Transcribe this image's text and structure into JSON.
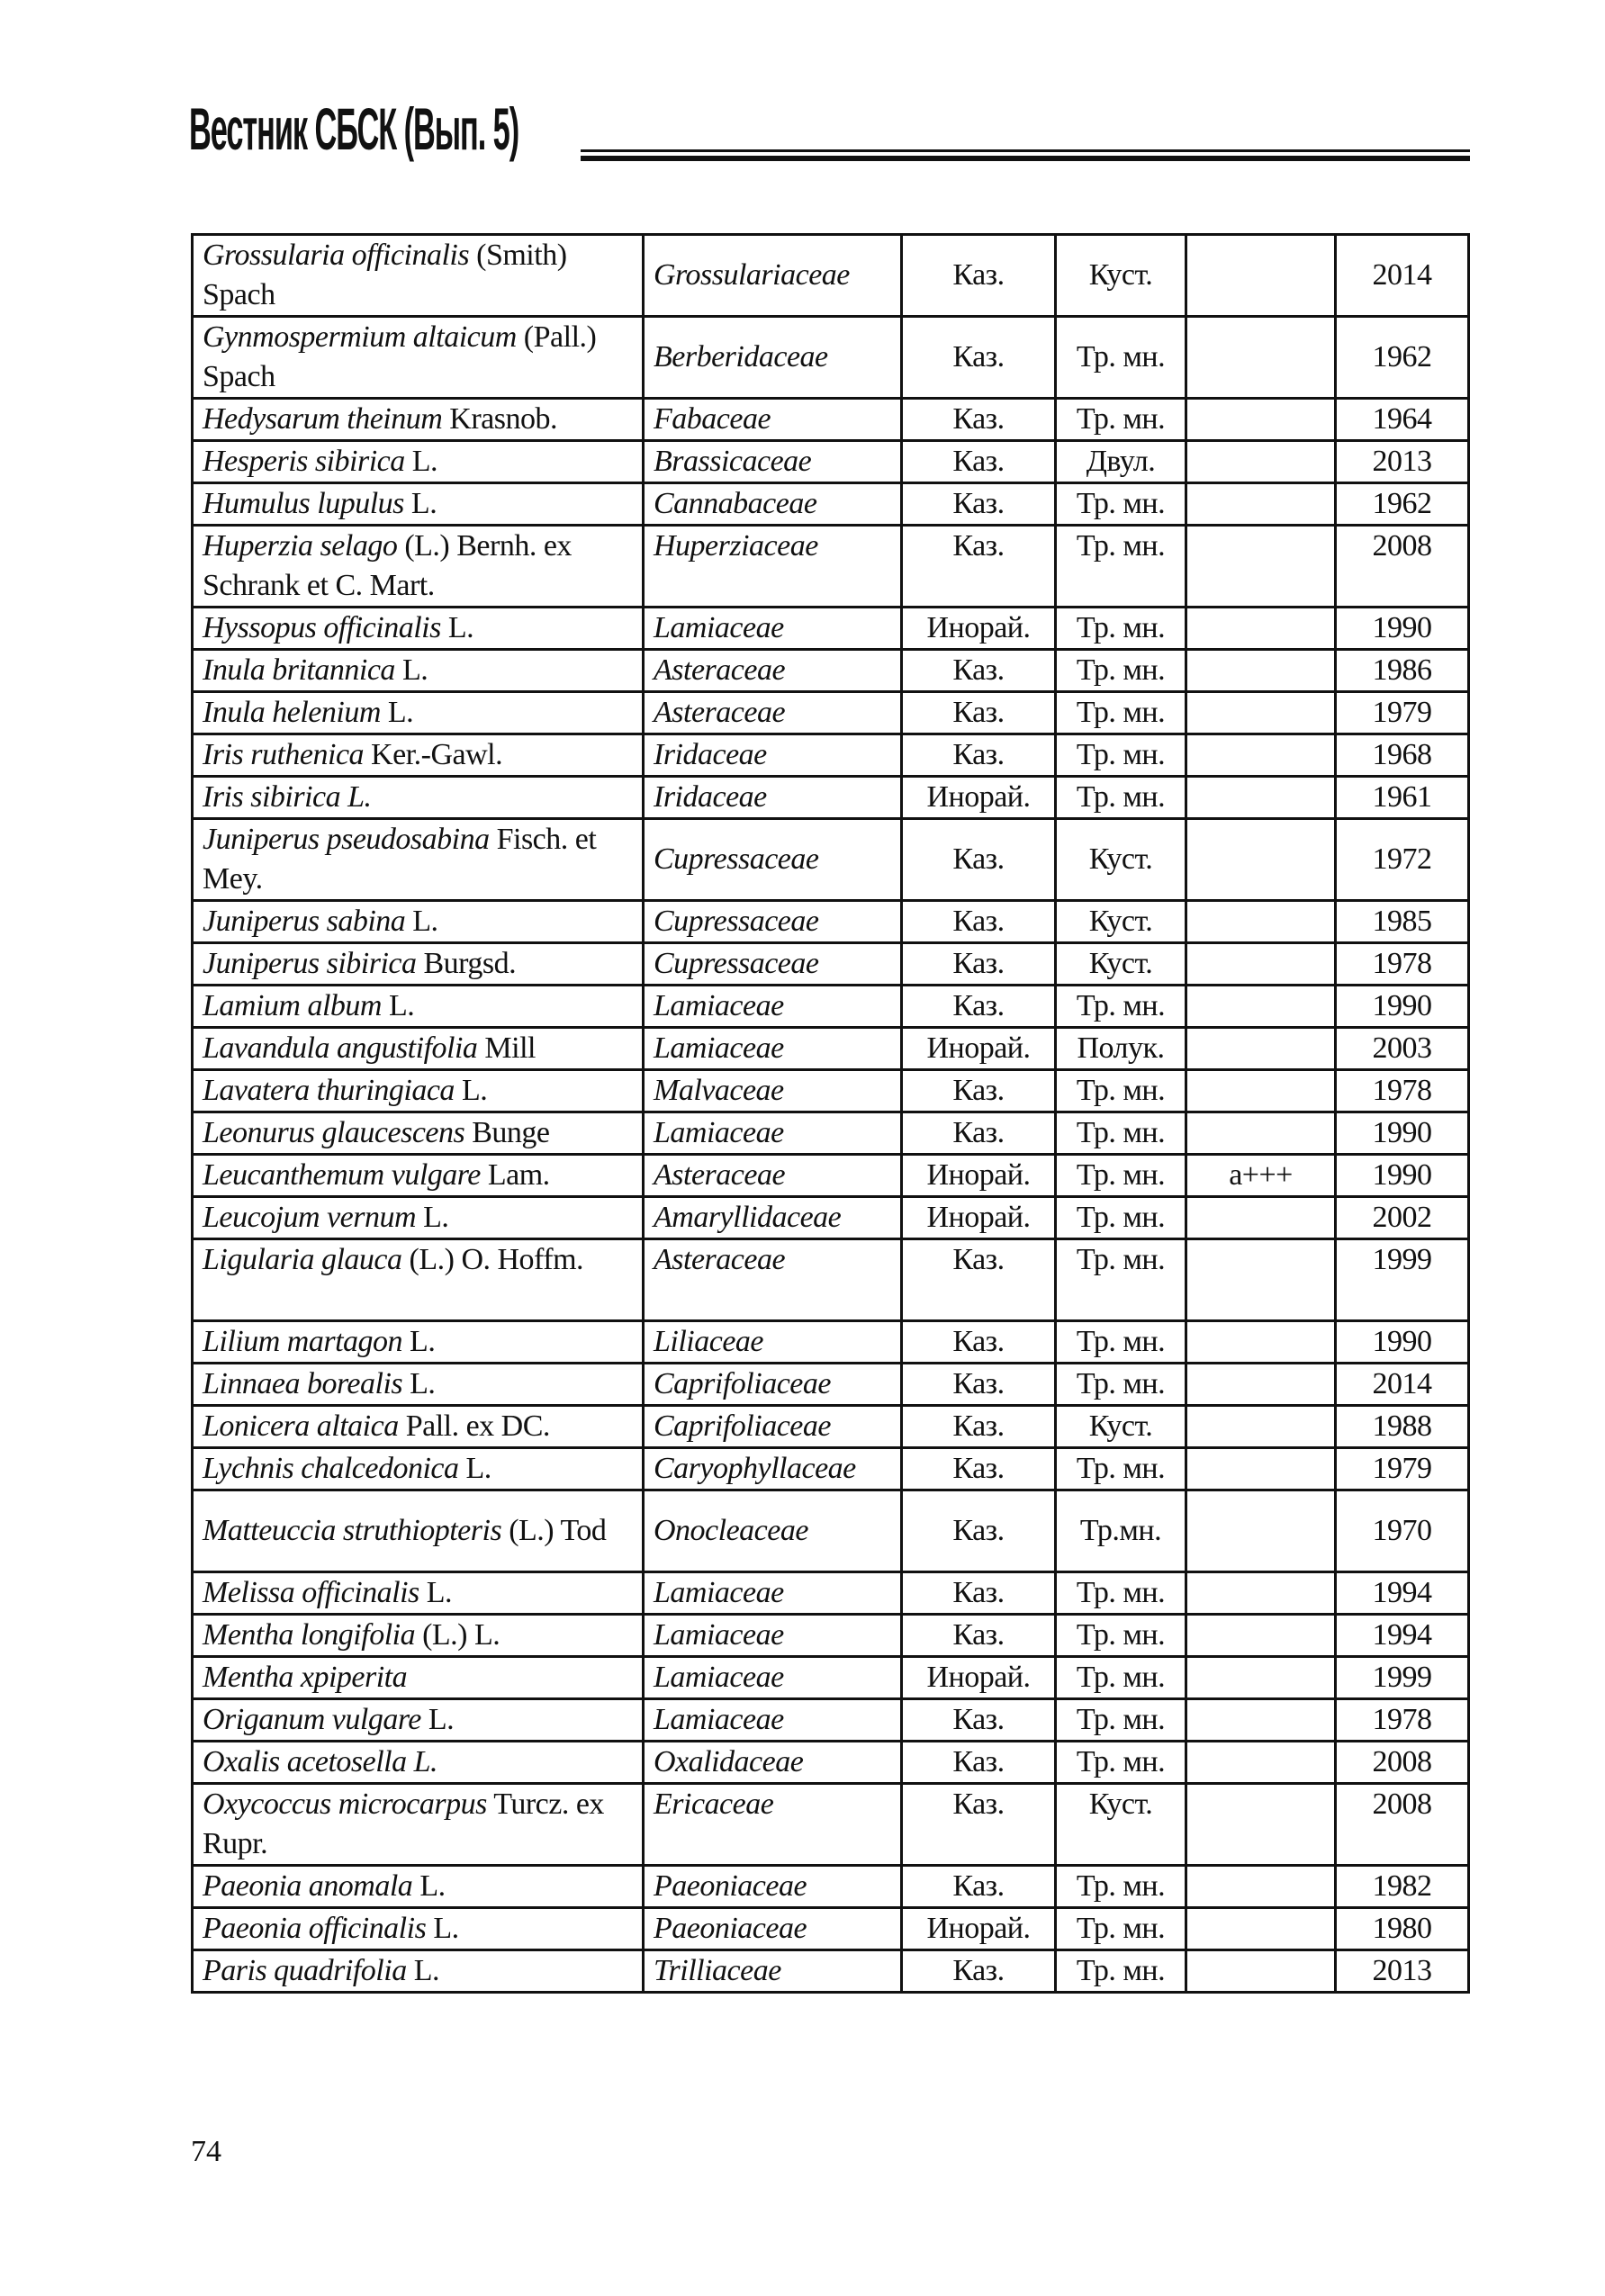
{
  "header": {
    "title": "Вестник СБСК (Вып. 5)"
  },
  "page_number": "74",
  "rows": [
    {
      "name": "Grossularia officinalis",
      "author": " (Smith) Spach",
      "family": "Grossulariaceae",
      "origin": "Каз.",
      "form": "Куст.",
      "note": "",
      "year": "2014"
    },
    {
      "name": "Gynmospermium altaicum",
      "author": " (Pall.) Spach",
      "family": "Berberidaceae",
      "origin": "Каз.",
      "form": "Тр. мн.",
      "note": "",
      "year": "1962"
    },
    {
      "name": "Hedysarum theinum",
      "author": " Krasnob.",
      "family": "Fabaceae",
      "origin": "Каз.",
      "form": "Тр. мн.",
      "note": "",
      "year": "1964"
    },
    {
      "name": "Hesperis sibirica",
      "author": " L.",
      "family": "Brassicaceae",
      "origin": "Каз.",
      "form": "Двул.",
      "note": "",
      "year": "2013"
    },
    {
      "name": "Humulus lupulus",
      "author": " L.",
      "family": "Cannabaceae",
      "origin": "Каз.",
      "form": "Тр. мн.",
      "note": "",
      "year": "1962"
    },
    {
      "name": "Huperzia selago",
      "author": " (L.) Bernh. ex Schrank et C. Mart.",
      "family": "Huperziaceae",
      "origin": "Каз.",
      "form": "Тр. мн.",
      "note": "",
      "year": "2008"
    },
    {
      "name": "Hyssopus officinalis",
      "author": " L.",
      "family": "Lamiaceae",
      "origin": "Инорай.",
      "form": "Тр. мн.",
      "note": "",
      "year": "1990"
    },
    {
      "name": "Inula britannica",
      "author": " L.",
      "family": "Asteraceae",
      "origin": "Каз.",
      "form": "Тр. мн.",
      "note": "",
      "year": "1986"
    },
    {
      "name": "Inula helenium",
      "author": " L.",
      "family": "Asteraceae",
      "origin": "Каз.",
      "form": "Тр. мн.",
      "note": "",
      "year": "1979"
    },
    {
      "name": "Iris ruthenica",
      "author": " Ker.-Gawl.",
      "family": "Iridaceae",
      "origin": "Каз.",
      "form": "Тр. мн.",
      "note": "",
      "year": "1968"
    },
    {
      "name": "Iris sibirica L.",
      "author": "",
      "family": "Iridaceae",
      "origin": "Инорай.",
      "form": "Тр. мн.",
      "note": "",
      "year": "1961"
    },
    {
      "name": "Juniperus pseudosabina",
      "author": " Fisch. et Mey.",
      "family": "Cupressaceae",
      "origin": "Каз.",
      "form": "Куст.",
      "note": "",
      "year": "1972"
    },
    {
      "name": "Juniperus sabina",
      "author": " L.",
      "family": "Cupressaceae",
      "origin": "Каз.",
      "form": "Куст.",
      "note": "",
      "year": "1985"
    },
    {
      "name": "Juniperus sibirica",
      "author": " Burgsd.",
      "family": "Cupressaceae",
      "origin": "Каз.",
      "form": "Куст.",
      "note": "",
      "year": "1978"
    },
    {
      "name": "Lamium album",
      "author": " L.",
      "family": "Lamiaceae",
      "origin": "Каз.",
      "form": "Тр. мн.",
      "note": "",
      "year": "1990"
    },
    {
      "name": "Lavandula angustifolia",
      "author": " Mill",
      "family": "Lamiaceae",
      "origin": "Инорай.",
      "form": "Полук.",
      "note": "",
      "year": "2003"
    },
    {
      "name": "Lavatera thuringiaca",
      "author": " L.",
      "family": "Malvaceae",
      "origin": "Каз.",
      "form": "Тр. мн.",
      "note": "",
      "year": "1978"
    },
    {
      "name": "Leonurus glaucescens",
      "author": " Bunge",
      "family": "Lamiaceae",
      "origin": "Каз.",
      "form": "Тр. мн.",
      "note": "",
      "year": "1990"
    },
    {
      "name": "Leucanthemum vulgare",
      "author": " Lam.",
      "family": "Asteraceae",
      "origin": "Инорай.",
      "form": "Тр. мн.",
      "note": "a+++",
      "year": "1990"
    },
    {
      "name": "Leucojum vernum",
      "author": " L.",
      "family": "Amaryllidaceae",
      "origin": "Инорай.",
      "form": "Тр. мн.",
      "note": "",
      "year": "2002"
    },
    {
      "name": "Ligularia glauca",
      "author": " (L.) O. Hoffm.",
      "family": "Asteraceae",
      "origin": "Каз.",
      "form": "Тр. мн.",
      "note": "",
      "year": "1999"
    },
    {
      "name": "Lilium martagon",
      "author": " L.",
      "family": "Liliaceae",
      "origin": "Каз.",
      "form": "Тр. мн.",
      "note": "",
      "year": "1990"
    },
    {
      "name": "Linnaea borealis",
      "author": " L.",
      "family": "Caprifoliaceae",
      "origin": "Каз.",
      "form": "Тр. мн.",
      "note": "",
      "year": "2014"
    },
    {
      "name": "Lonicera altaica",
      "author": " Pall. ex DC.",
      "family": "Caprifoliaceae",
      "origin": "Каз.",
      "form": "Куст.",
      "note": "",
      "year": "1988"
    },
    {
      "name": "Lychnis chalcedonica",
      "author": " L.",
      "family": "Caryophyllaceae",
      "origin": "Каз.",
      "form": "Тр. мн.",
      "note": "",
      "year": "1979"
    },
    {
      "name": "Matteuccia struthiopteris",
      "author": " (L.) Tod",
      "family": "Onocleaceae",
      "origin": "Каз.",
      "form": "Тр.мн.",
      "note": "",
      "year": "1970"
    },
    {
      "name": "Melissa officinalis",
      "author": " L.",
      "family": "Lamiaceae",
      "origin": "Каз.",
      "form": "Тр. мн.",
      "note": "",
      "year": "1994"
    },
    {
      "name": "Mentha longifolia",
      "author": " (L.) L.",
      "family": "Lamiaceae",
      "origin": "Каз.",
      "form": "Тр. мн.",
      "note": "",
      "year": "1994"
    },
    {
      "name": "Mentha xpiperita",
      "author": "",
      "family": "Lamiaceae",
      "origin": "Инорай.",
      "form": "Тр. мн.",
      "note": "",
      "year": "1999"
    },
    {
      "name": "Origanum vulgare",
      "author": " L.",
      "family": "Lamiaceae",
      "origin": "Каз.",
      "form": "Тр. мн.",
      "note": "",
      "year": "1978"
    },
    {
      "name": "Oxalis acetosella L.",
      "author": "",
      "family": "Oxalidaceae",
      "origin": "Каз.",
      "form": "Тр. мн.",
      "note": "",
      "year": "2008"
    },
    {
      "name": "Oxycoccus microcarpus",
      "author": " Turcz. ex Rupr.",
      "family": "Ericaceae",
      "origin": "Каз.",
      "form": "Куст.",
      "note": "",
      "year": "2008"
    },
    {
      "name": "Paeonia anomala",
      "author": " L.",
      "family": "Paeoniaceae",
      "origin": "Каз.",
      "form": "Тр. мн.",
      "note": "",
      "year": "1982"
    },
    {
      "name": "Paeonia officinalis",
      "author": " L.",
      "family": "Paeoniaceae",
      "origin": "Инорай.",
      "form": "Тр. мн.",
      "note": "",
      "year": "1980"
    },
    {
      "name": "Paris quadrifolia",
      "author": " L.",
      "family": "Trilliaceae",
      "origin": "Каз.",
      "form": "Тр. мн.",
      "note": "",
      "year": "2013"
    }
  ]
}
